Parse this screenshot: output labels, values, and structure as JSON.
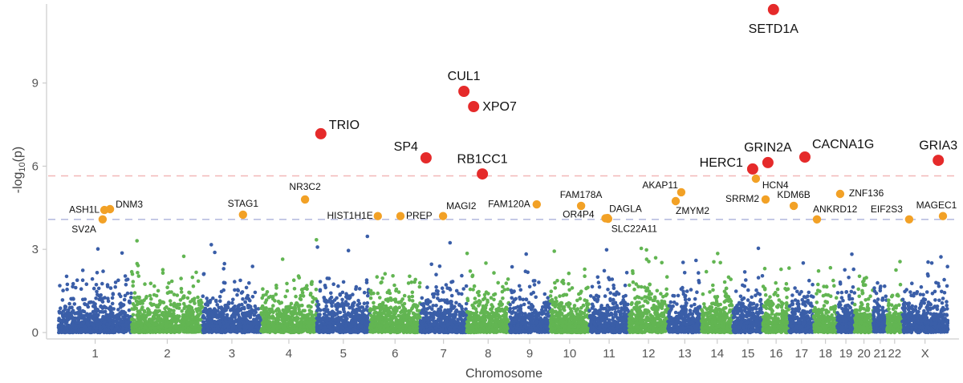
{
  "chart_data": {
    "type": "scatter",
    "subtype": "manhattan",
    "title": "",
    "xlabel": "Chromosome",
    "ylabel": {
      "prefix": "-log",
      "sub": "10",
      "suffix": "(p)"
    },
    "ylim": [
      -0.23,
      11.85
    ],
    "yticks": [
      0,
      3,
      6,
      9
    ],
    "grid": false,
    "thresholds": [
      {
        "value": 5.65,
        "color": "#f2b8b8",
        "style": "dashed"
      },
      {
        "value": 4.08,
        "color": "#b8bde0",
        "style": "dashed"
      }
    ],
    "colors": {
      "odd_chromosome": "#3a5ea8",
      "even_chromosome": "#62b552",
      "genome_wide": "#e52a2a",
      "suggestive": "#f2a126"
    },
    "chromosomes": [
      {
        "label": "1",
        "length_mb": 249
      },
      {
        "label": "2",
        "length_mb": 242
      },
      {
        "label": "3",
        "length_mb": 198
      },
      {
        "label": "4",
        "length_mb": 190
      },
      {
        "label": "5",
        "length_mb": 181
      },
      {
        "label": "6",
        "length_mb": 171
      },
      {
        "label": "7",
        "length_mb": 159
      },
      {
        "label": "8",
        "length_mb": 145
      },
      {
        "label": "9",
        "length_mb": 138
      },
      {
        "label": "10",
        "length_mb": 134
      },
      {
        "label": "11",
        "length_mb": 135
      },
      {
        "label": "12",
        "length_mb": 133
      },
      {
        "label": "13",
        "length_mb": 114
      },
      {
        "label": "14",
        "length_mb": 107
      },
      {
        "label": "15",
        "length_mb": 102
      },
      {
        "label": "16",
        "length_mb": 90
      },
      {
        "label": "17",
        "length_mb": 83
      },
      {
        "label": "18",
        "length_mb": 80
      },
      {
        "label": "19",
        "length_mb": 59
      },
      {
        "label": "20",
        "length_mb": 64
      },
      {
        "label": "21",
        "length_mb": 47
      },
      {
        "label": "22",
        "length_mb": 51
      },
      {
        "label": "X",
        "length_mb": 156
      }
    ],
    "background_max": 3.6,
    "highlighted": [
      {
        "gene": "SETD1A",
        "chr": "16",
        "pos_mb": 36,
        "y": 11.65,
        "level": "genome_wide"
      },
      {
        "gene": "CUL1",
        "chr": "7",
        "pos_mb": 149,
        "y": 8.7,
        "level": "genome_wide"
      },
      {
        "gene": "XPO7",
        "chr": "8",
        "pos_mb": 23,
        "y": 8.15,
        "level": "genome_wide"
      },
      {
        "gene": "TRIO",
        "chr": "5",
        "pos_mb": 14,
        "y": 7.17,
        "level": "genome_wide"
      },
      {
        "gene": "SP4",
        "chr": "7",
        "pos_mb": 20,
        "y": 6.3,
        "level": "genome_wide"
      },
      {
        "gene": "RB1CC1",
        "chr": "8",
        "pos_mb": 53,
        "y": 5.72,
        "level": "genome_wide"
      },
      {
        "gene": "HERC1",
        "chr": "15",
        "pos_mb": 67,
        "y": 5.9,
        "level": "genome_wide"
      },
      {
        "gene": "GRIN2A",
        "chr": "16",
        "pos_mb": 17,
        "y": 6.13,
        "level": "genome_wide"
      },
      {
        "gene": "CACNA1G",
        "chr": "17",
        "pos_mb": 53,
        "y": 6.33,
        "level": "genome_wide"
      },
      {
        "gene": "GRIA3",
        "chr": "X",
        "pos_mb": 123,
        "y": 6.21,
        "level": "genome_wide"
      },
      {
        "gene": "ASH1L",
        "chr": "1",
        "pos_mb": 156,
        "y": 4.42,
        "level": "suggestive"
      },
      {
        "gene": "DNM3",
        "chr": "1",
        "pos_mb": 175,
        "y": 4.45,
        "level": "suggestive"
      },
      {
        "gene": "SV2A",
        "chr": "1",
        "pos_mb": 150,
        "y": 4.08,
        "level": "suggestive"
      },
      {
        "gene": "STAG1",
        "chr": "3",
        "pos_mb": 137,
        "y": 4.25,
        "level": "suggestive"
      },
      {
        "gene": "NR3C2",
        "chr": "4",
        "pos_mb": 150,
        "y": 4.8,
        "level": "suggestive"
      },
      {
        "gene": "HIST1H1E",
        "chr": "6",
        "pos_mb": 27,
        "y": 4.2,
        "level": "suggestive"
      },
      {
        "gene": "PREP",
        "chr": "6",
        "pos_mb": 104,
        "y": 4.2,
        "level": "suggestive"
      },
      {
        "gene": "MAGI2",
        "chr": "7",
        "pos_mb": 78,
        "y": 4.2,
        "level": "suggestive"
      },
      {
        "gene": "FAM120A",
        "chr": "9",
        "pos_mb": 93,
        "y": 4.62,
        "level": "suggestive"
      },
      {
        "gene": "FAM178A",
        "chr": "10",
        "pos_mb": 106,
        "y": 4.57,
        "level": "suggestive"
      },
      {
        "gene": "OR4P4",
        "chr": "11",
        "pos_mb": 55,
        "y": 4.12,
        "level": "suggestive"
      },
      {
        "gene": "DAGLA",
        "chr": "11",
        "pos_mb": 62,
        "y": 4.13,
        "level": "suggestive"
      },
      {
        "gene": "SLC22A11",
        "chr": "11",
        "pos_mb": 64,
        "y": 4.1,
        "level": "suggestive"
      },
      {
        "gene": "AKAP11",
        "chr": "13",
        "pos_mb": 45,
        "y": 5.06,
        "level": "suggestive"
      },
      {
        "gene": "ZMYM2",
        "chr": "13",
        "pos_mb": 26,
        "y": 4.74,
        "level": "suggestive"
      },
      {
        "gene": "HCN4",
        "chr": "15",
        "pos_mb": 78,
        "y": 5.55,
        "level": "suggestive"
      },
      {
        "gene": "SRRM2",
        "chr": "16",
        "pos_mb": 9,
        "y": 4.8,
        "level": "suggestive"
      },
      {
        "gene": "KDM6B",
        "chr": "17",
        "pos_mb": 15,
        "y": 4.57,
        "level": "suggestive"
      },
      {
        "gene": "ANKRD12",
        "chr": "18",
        "pos_mb": 11,
        "y": 4.08,
        "level": "suggestive"
      },
      {
        "gene": "ZNF136",
        "chr": "19",
        "pos_mb": 10,
        "y": 5.0,
        "level": "suggestive"
      },
      {
        "gene": "EIF2S3",
        "chr": "X",
        "pos_mb": 24,
        "y": 4.08,
        "level": "suggestive"
      },
      {
        "gene": "MAGEC1",
        "chr": "X",
        "pos_mb": 139,
        "y": 4.2,
        "level": "suggestive"
      }
    ]
  }
}
